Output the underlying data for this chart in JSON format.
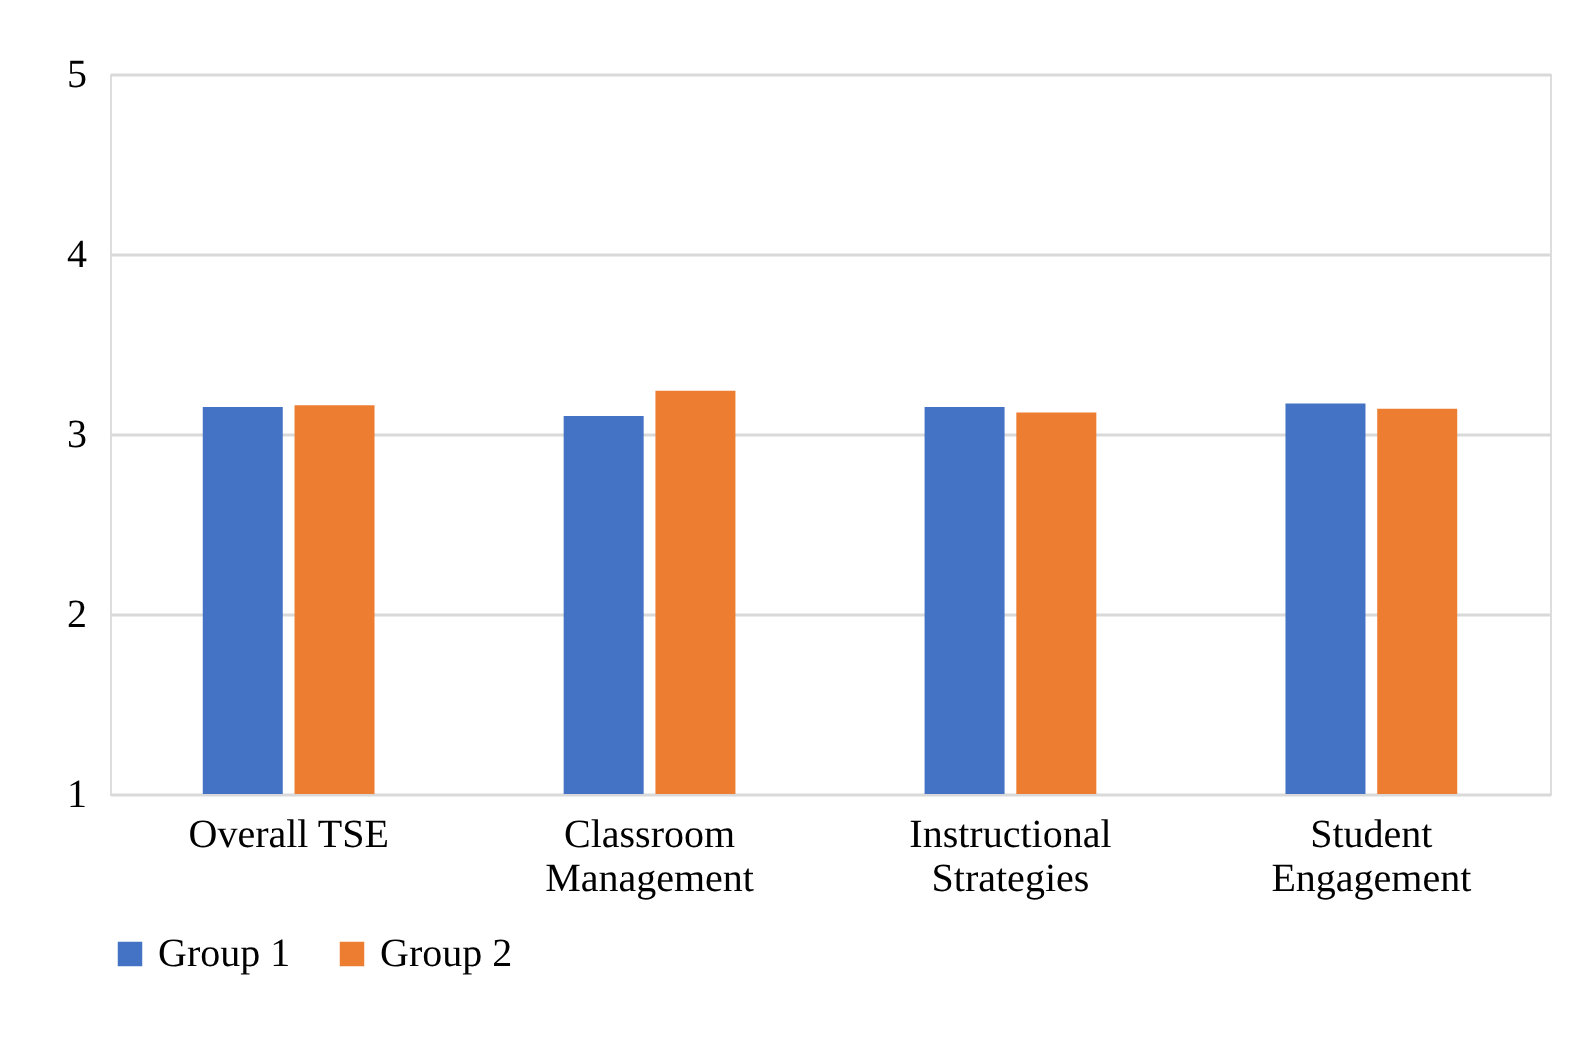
{
  "chart_data": {
    "type": "bar",
    "categories": [
      "Overall TSE",
      "Classroom\nManagement",
      "Instructional\nStrategies",
      "Student\nEngagement"
    ],
    "series": [
      {
        "name": "Group 1",
        "color": "#4472c4",
        "values": [
          3.15,
          3.1,
          3.15,
          3.17
        ]
      },
      {
        "name": "Group 2",
        "color": "#ed7d31",
        "values": [
          3.16,
          3.24,
          3.12,
          3.14
        ]
      }
    ],
    "ylim": [
      1,
      5
    ],
    "yticks": [
      1,
      2,
      3,
      4,
      5
    ],
    "grid": "y",
    "legend": "bottom"
  }
}
